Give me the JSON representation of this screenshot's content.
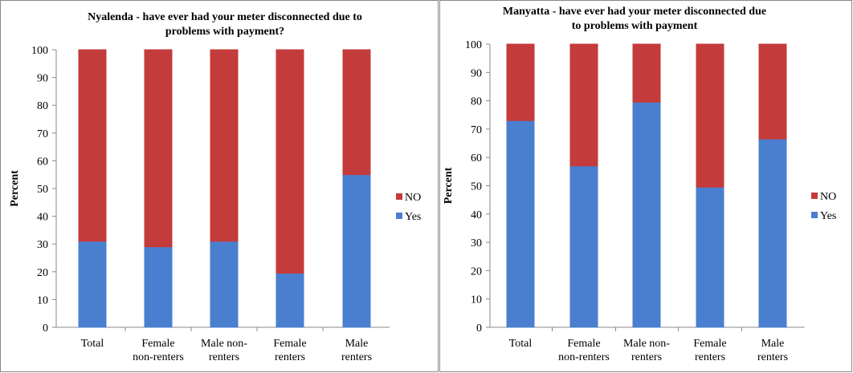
{
  "chart_data": [
    {
      "type": "stacked_bar",
      "title": "Nyalenda - have ever had your meter disconnected due to\nproblems with payment?",
      "y_label": "Percent",
      "categories": [
        "Total",
        "Female\nnon-renters",
        "Male non-\nrenters",
        "Female\nrenters",
        "Male\nrenters"
      ],
      "series": [
        {
          "name": "Yes",
          "color": "#4a7fcf",
          "values": [
            31,
            29,
            31,
            19.5,
            55
          ]
        },
        {
          "name": "NO",
          "color": "#c43b3b",
          "values": [
            69,
            71,
            69,
            80.5,
            45
          ]
        }
      ],
      "ylim": [
        0,
        100
      ],
      "yticks": [
        0,
        10,
        20,
        30,
        40,
        50,
        60,
        70,
        80,
        90,
        100
      ],
      "legend": "right"
    },
    {
      "type": "stacked_bar",
      "title": "Manyatta - have ever had your meter disconnected due\nto problems with payment",
      "y_label": "Percent",
      "categories": [
        "Total",
        "Female\nnon-renters",
        "Male non-\nrenters",
        "Female\nrenters",
        "Male\nrenters"
      ],
      "series": [
        {
          "name": "Yes",
          "color": "#4a7fcf",
          "values": [
            73,
            57,
            79.5,
            49.5,
            66.5
          ]
        },
        {
          "name": "NO",
          "color": "#c43b3b",
          "values": [
            27,
            43,
            20.5,
            50.5,
            33.5
          ]
        }
      ],
      "ylim": [
        0,
        100
      ],
      "yticks": [
        0,
        10,
        20,
        30,
        40,
        50,
        60,
        70,
        80,
        90,
        100
      ],
      "legend": "right"
    }
  ]
}
